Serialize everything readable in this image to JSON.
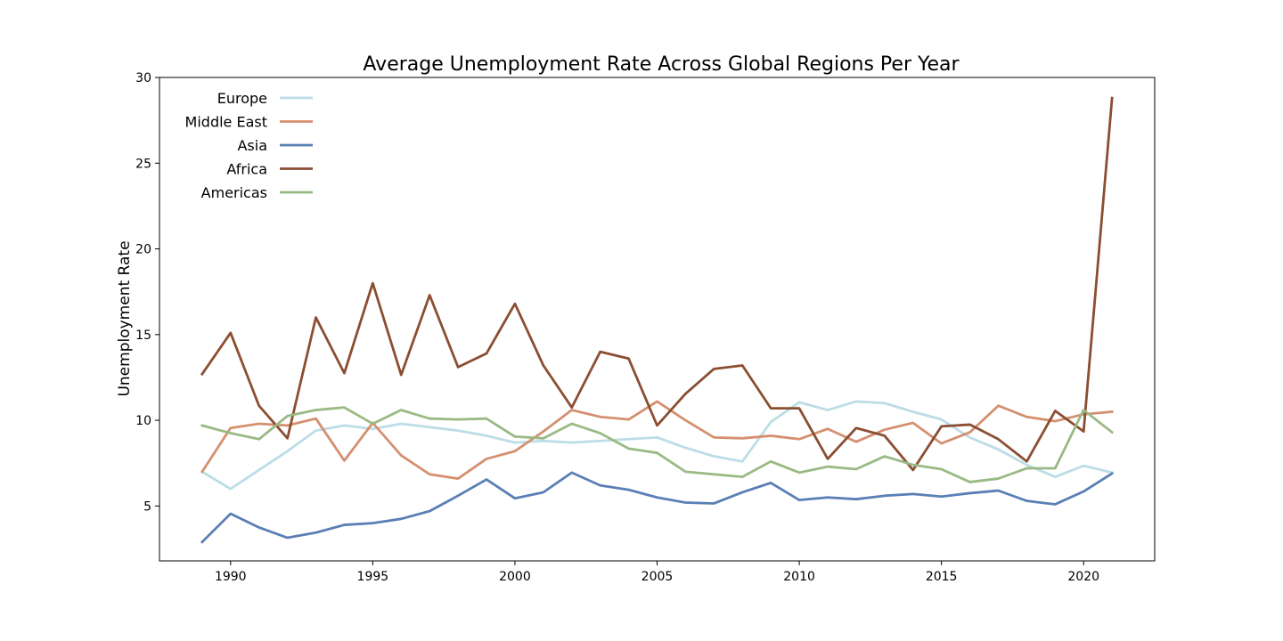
{
  "chart_data": {
    "type": "line",
    "title": "Average Unemployment Rate Across Global Regions Per Year",
    "xlabel": "",
    "ylabel": "Unemployment Rate",
    "x": [
      1989,
      1990,
      1991,
      1992,
      1993,
      1994,
      1995,
      1996,
      1997,
      1998,
      1999,
      2000,
      2001,
      2002,
      2003,
      2004,
      2005,
      2006,
      2007,
      2008,
      2009,
      2010,
      2011,
      2012,
      2013,
      2014,
      2015,
      2016,
      2017,
      2018,
      2019,
      2020,
      2021
    ],
    "xlim": [
      1987.5,
      2022.5
    ],
    "ylim": [
      1.8,
      30
    ],
    "xticks": [
      1990,
      1995,
      2000,
      2005,
      2010,
      2015,
      2020
    ],
    "yticks": [
      5,
      10,
      15,
      20,
      25,
      30
    ],
    "grid": false,
    "legend_position": "top-left",
    "series": [
      {
        "name": "Europe",
        "color": "#bcdde6",
        "values": [
          7.0,
          6.0,
          7.1,
          8.2,
          9.4,
          9.7,
          9.5,
          9.8,
          9.6,
          9.4,
          9.1,
          8.7,
          8.8,
          8.7,
          8.8,
          8.9,
          9.0,
          8.4,
          7.9,
          7.6,
          9.9,
          11.05,
          10.6,
          11.1,
          11.0,
          10.5,
          10.05,
          9.0,
          8.3,
          7.4,
          6.7,
          7.35,
          6.95
        ]
      },
      {
        "name": "Middle East",
        "color": "#d4906f",
        "values": [
          7.0,
          9.55,
          9.8,
          9.7,
          10.1,
          7.65,
          9.85,
          7.95,
          6.85,
          6.6,
          7.75,
          8.2,
          9.35,
          10.6,
          10.2,
          10.05,
          11.1,
          10.0,
          9.0,
          8.95,
          9.1,
          8.9,
          9.5,
          8.75,
          9.45,
          9.85,
          8.65,
          9.3,
          10.85,
          10.2,
          9.95,
          10.35,
          10.5
        ]
      },
      {
        "name": "Asia",
        "color": "#5a7fb5",
        "values": [
          2.9,
          4.55,
          3.75,
          3.15,
          3.45,
          3.9,
          4.0,
          4.25,
          4.7,
          5.6,
          6.55,
          5.45,
          5.8,
          6.95,
          6.2,
          5.95,
          5.5,
          5.2,
          5.15,
          5.8,
          6.35,
          5.35,
          5.5,
          5.4,
          5.6,
          5.7,
          5.55,
          5.75,
          5.9,
          5.3,
          5.1,
          5.85,
          6.9
        ]
      },
      {
        "name": "Africa",
        "color": "#8b4e32",
        "values": [
          12.7,
          15.1,
          10.85,
          8.95,
          16.0,
          12.75,
          18.0,
          12.65,
          17.3,
          13.1,
          13.9,
          16.8,
          13.2,
          10.75,
          14.0,
          13.6,
          9.7,
          11.55,
          13.0,
          13.2,
          10.7,
          10.7,
          7.75,
          9.55,
          9.1,
          7.1,
          9.65,
          9.75,
          8.9,
          7.6,
          10.55,
          9.35,
          28.8
        ]
      },
      {
        "name": "Americas",
        "color": "#99ba84",
        "values": [
          9.7,
          9.25,
          8.9,
          10.25,
          10.6,
          10.75,
          9.8,
          10.6,
          10.1,
          10.05,
          10.1,
          9.05,
          8.95,
          9.8,
          9.25,
          8.35,
          8.1,
          7.0,
          6.85,
          6.7,
          7.6,
          6.95,
          7.3,
          7.15,
          7.9,
          7.4,
          7.15,
          6.4,
          6.6,
          7.2,
          7.2,
          10.6,
          9.3
        ]
      }
    ]
  }
}
